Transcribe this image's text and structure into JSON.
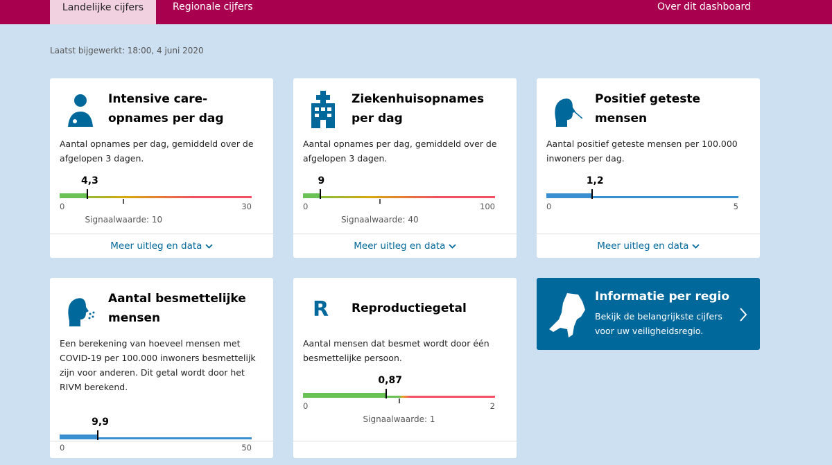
{
  "nav": {
    "tabs": [
      {
        "label": "Landelijke cijfers",
        "active": true
      },
      {
        "label": "Regionale cijfers"
      }
    ],
    "about": "Over dit dashboard"
  },
  "updated": "Laatst bijgewerkt: 18:00, 4 juni 2020",
  "colors": {
    "nav": "#a8004f",
    "accent": "#01689b",
    "good": "#69c253",
    "bad": "#f35065"
  },
  "cards": [
    {
      "icon": "doctor-icon",
      "title": "Intensive care-opnames per dag",
      "desc": "Aantal opnames per dag, gemiddeld over de afgelopen 3 dagen.",
      "value": 4.3,
      "value_label": "4,3",
      "min": 0,
      "max": 30,
      "min_label": "0",
      "max_label": "30",
      "signal": 10,
      "signal_label": "Signaalwaarde: 10",
      "style": "gradient",
      "more": "Meer uitleg en data"
    },
    {
      "icon": "hospital-icon",
      "title": "Ziekenhuisopnames per dag",
      "desc": "Aantal opnames per dag, gemiddeld over de afgelopen 3 dagen.",
      "value": 9,
      "value_label": "9",
      "min": 0,
      "max": 100,
      "min_label": "0",
      "max_label": "100",
      "signal": 40,
      "signal_label": "Signaalwaarde: 40",
      "style": "gradient",
      "more": "Meer uitleg en data"
    },
    {
      "icon": "test-swab-icon",
      "title": "Positief geteste mensen",
      "desc": "Aantal positief geteste mensen per 100.000 inwoners per dag.",
      "value": 1.2,
      "value_label": "1,2",
      "min": 0,
      "max": 5,
      "min_label": "0",
      "max_label": "5",
      "style": "blue",
      "more": "Meer uitleg en data"
    },
    {
      "icon": "infectious-person-icon",
      "title": "Aantal besmettelijke mensen",
      "desc": "Een berekening van hoeveel mensen met COVID-19 per 100.000 inwoners besmettelijk zijn voor anderen. Dit getal wordt door het RIVM berekend.",
      "value": 9.9,
      "value_label": "9,9",
      "min": 0,
      "max": 50,
      "min_label": "0",
      "max_label": "50",
      "style": "blue"
    },
    {
      "icon": "r-letter-icon",
      "icon_text": "R",
      "title": "Reproductiegetal",
      "desc": "Aantal mensen dat besmet wordt door één besmettelijke persoon.",
      "value": 0.87,
      "value_label": "0,87",
      "min": 0,
      "max": 2,
      "min_label": "0",
      "max_label": "2",
      "signal": 1,
      "signal_label": "Signaalwaarde: 1",
      "style": "split"
    }
  ],
  "region": {
    "title": "Informatie per regio",
    "desc": "Bekijk de belangrijkste cijfers voor uw veiligheidsregio."
  }
}
